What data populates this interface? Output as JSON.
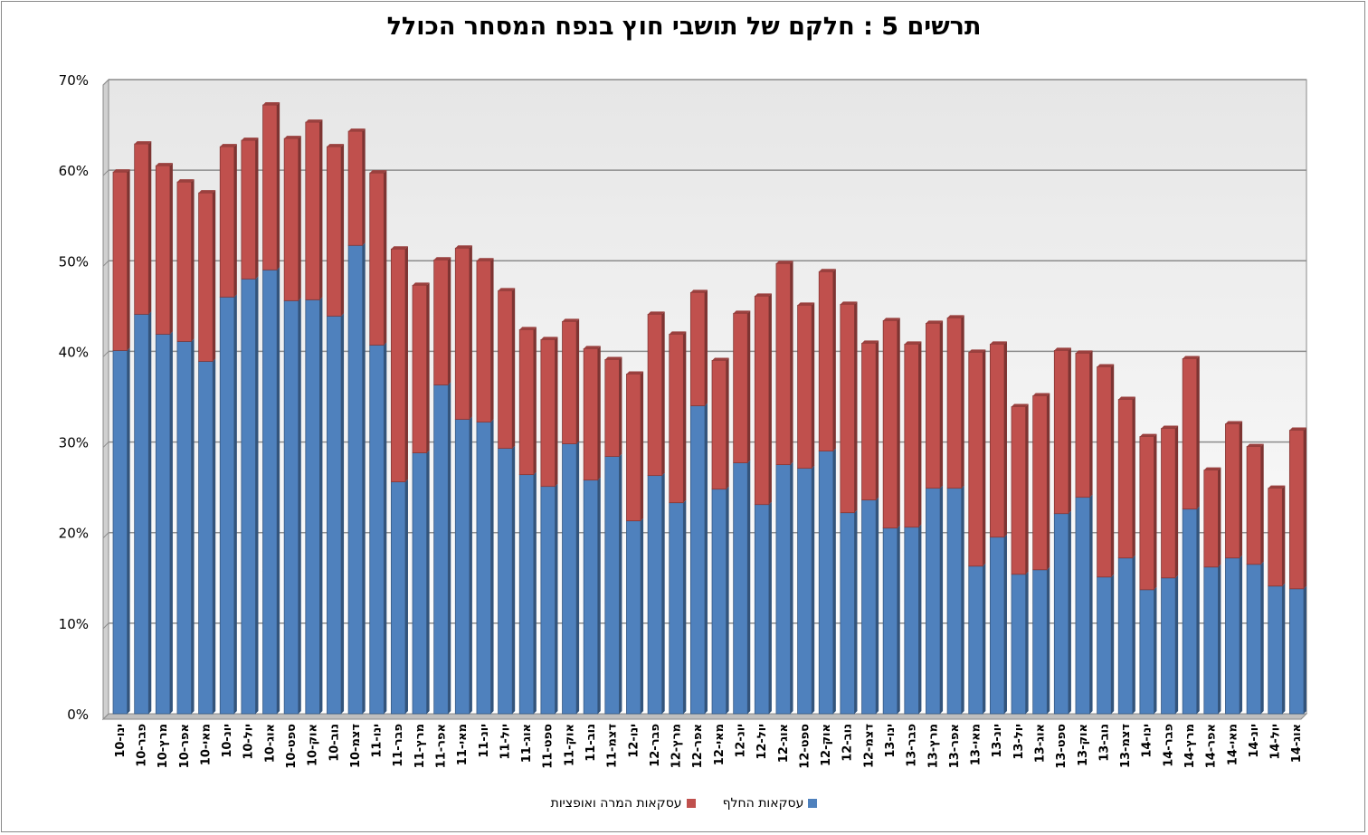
{
  "chart_data": {
    "type": "bar",
    "stacked": true,
    "title": "תרשים 5 : חלקם של תושבי חוץ בנפח המסחר הכולל",
    "xlabel": "",
    "ylabel": "",
    "ylim": [
      0,
      70
    ],
    "y_ticks": [
      "0%",
      "10%",
      "20%",
      "30%",
      "40%",
      "50%",
      "60%",
      "70%"
    ],
    "grid": true,
    "legend_position": "bottom",
    "categories": [
      "ינו-10",
      "פבר-10",
      "מרץ-10",
      "אפר-10",
      "מאי-10",
      "יונ-10",
      "יול-10",
      "אוג-10",
      "ספט-10",
      "אוק-10",
      "נוב-10",
      "דצמ-10",
      "ינו-11",
      "פבר-11",
      "מרץ-11",
      "אפר-11",
      "מאי-11",
      "יונ-11",
      "יול-11",
      "אוג-11",
      "ספט-11",
      "אוק-11",
      "נוב-11",
      "דצמ-11",
      "ינו-12",
      "פבר-12",
      "מרץ-12",
      "אפר-12",
      "מאי-12",
      "יונ-12",
      "יול-12",
      "אוג-12",
      "ספט-12",
      "אוק-12",
      "נוב-12",
      "דצמ-12",
      "ינו-13",
      "פבר-13",
      "מרץ-13",
      "אפר-13",
      "מאי-13",
      "יונ-13",
      "יול-13",
      "אוג-13",
      "ספט-13",
      "אוק-13",
      "נוב-13",
      "דצמ-13",
      "ינו-14",
      "פבר-14",
      "מרץ-14",
      "אפר-14",
      "מאי-14",
      "יונ-14",
      "יול-14",
      "אוג-14"
    ],
    "series": [
      {
        "name": "עסקאות החלף",
        "color": "#4f81bd",
        "values": [
          40.1,
          44.1,
          41.9,
          41.1,
          38.9,
          46.0,
          48.0,
          49.0,
          45.6,
          45.7,
          43.9,
          51.7,
          40.7,
          25.6,
          28.8,
          36.3,
          32.5,
          32.2,
          29.3,
          26.4,
          25.1,
          29.8,
          25.8,
          28.4,
          21.3,
          26.3,
          23.3,
          34.0,
          24.8,
          27.7,
          23.1,
          27.5,
          27.1,
          29.0,
          22.2,
          23.6,
          20.5,
          20.6,
          24.9,
          24.9,
          16.3,
          19.5,
          15.4,
          15.9,
          22.1,
          23.9,
          15.1,
          17.2,
          13.7,
          15.0,
          22.6,
          16.2,
          17.2,
          16.5,
          14.1,
          13.8
        ]
      },
      {
        "name": "עסקאות המרה ואופציות",
        "color": "#c0504d",
        "values": [
          19.7,
          18.8,
          18.6,
          17.6,
          18.6,
          16.6,
          15.3,
          18.2,
          17.9,
          19.6,
          18.7,
          12.6,
          19.0,
          25.7,
          18.5,
          13.8,
          18.9,
          17.8,
          17.4,
          16.0,
          16.2,
          13.5,
          14.5,
          10.7,
          16.2,
          17.8,
          18.6,
          12.5,
          14.2,
          16.5,
          23.0,
          22.2,
          18.0,
          19.8,
          23.0,
          17.3,
          22.9,
          20.2,
          18.2,
          18.8,
          23.6,
          21.3,
          18.5,
          19.2,
          18.0,
          15.9,
          23.2,
          17.5,
          16.9,
          16.5,
          16.6,
          10.7,
          14.8,
          13.0,
          10.8,
          17.5
        ]
      }
    ]
  }
}
